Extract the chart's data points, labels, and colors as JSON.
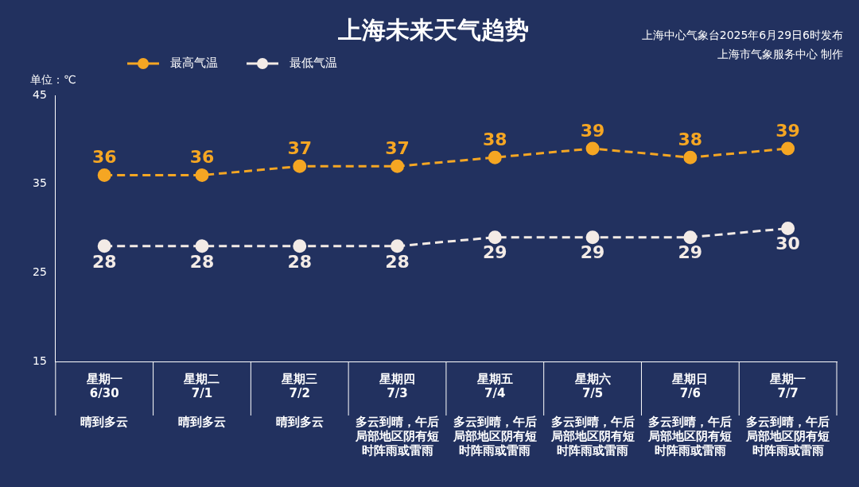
{
  "chart_data": {
    "type": "line",
    "title": "上海未来天气趋势",
    "ylabel": "单位：℃",
    "annotations": [
      "上海中心气象台2025年6月29日6时发布",
      "上海市气象服务中心 制作"
    ],
    "categories": [
      "星期一\n6/30\n晴到多云",
      "星期二\n7/1\n晴到多云",
      "星期三\n7/2\n晴到多云",
      "星期四\n7/3\n多云到晴，午后局部地区阴有短时阵雨或雷雨",
      "星期五\n7/4\n多云到晴，午后局部地区阴有短时阵雨或雷雨",
      "星期六\n7/5\n多云到晴，午后局部地区阴有短时阵雨或雷雨",
      "星期日\n7/6\n多云到晴，午后局部地区阴有短时阵雨或雷雨",
      "星期一\n7/7\n多云到晴，午后局部地区阴有短时阵雨或雷雨"
    ],
    "series": [
      {
        "name": "最高气温",
        "color": "#f5a623",
        "values": [
          36,
          36,
          37,
          37,
          38,
          39,
          38,
          39
        ]
      },
      {
        "name": "最低气温",
        "color": "#f3ebe6",
        "values": [
          28,
          28,
          28,
          28,
          29,
          29,
          29,
          30
        ]
      }
    ],
    "ylim": [
      15,
      45
    ],
    "yticks": [
      15,
      25,
      35,
      45
    ],
    "grid": false,
    "legend": "top left",
    "marker": "circle",
    "line_style": "dashed",
    "data_labels": true
  }
}
